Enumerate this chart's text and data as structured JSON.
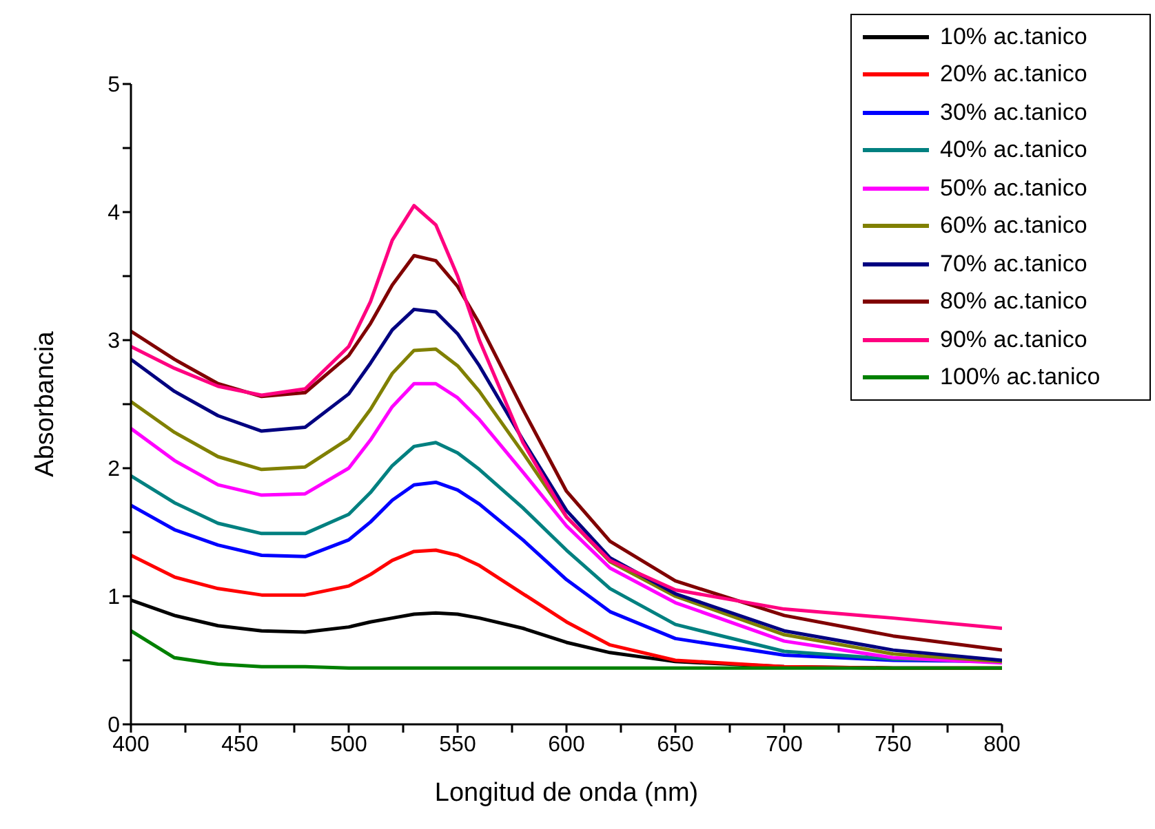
{
  "chart_data": {
    "type": "line",
    "xlabel": "Longitud de onda (nm)",
    "ylabel": "Absorbancia",
    "x": [
      400,
      420,
      440,
      460,
      480,
      500,
      510,
      520,
      530,
      540,
      550,
      560,
      580,
      600,
      620,
      650,
      700,
      750,
      800
    ],
    "xlim": [
      400,
      800
    ],
    "ylim": [
      0,
      5
    ],
    "xticks": [
      400,
      {
        "value": 425,
        "label": null
      },
      450,
      {
        "value": 475,
        "label": null
      },
      500,
      {
        "value": 525,
        "label": null
      },
      550,
      {
        "value": 575,
        "label": null
      },
      600,
      {
        "value": 625,
        "label": null
      },
      650,
      {
        "value": 675,
        "label": null
      },
      700,
      {
        "value": 725,
        "label": null
      },
      750,
      {
        "value": 775,
        "label": null
      },
      800
    ],
    "yticks": [
      0,
      {
        "value": 0.5,
        "label": null
      },
      1,
      {
        "value": 1.5,
        "label": null
      },
      2,
      {
        "value": 2.5,
        "label": null
      },
      3,
      {
        "value": 3.5,
        "label": null
      },
      4,
      {
        "value": 4.5,
        "label": null
      },
      5
    ],
    "legend": "top right",
    "series": [
      {
        "name": "10% ac.tanico",
        "color": "#000000",
        "values": [
          0.97,
          0.85,
          0.77,
          0.73,
          0.72,
          0.76,
          0.8,
          0.83,
          0.86,
          0.87,
          0.86,
          0.83,
          0.75,
          0.64,
          0.56,
          0.49,
          0.45,
          0.44,
          0.44
        ]
      },
      {
        "name": "20% ac.tanico",
        "color": "#ff0000",
        "values": [
          1.32,
          1.15,
          1.06,
          1.01,
          1.01,
          1.08,
          1.17,
          1.28,
          1.35,
          1.36,
          1.32,
          1.24,
          1.02,
          0.8,
          0.62,
          0.5,
          0.45,
          0.44,
          0.44
        ]
      },
      {
        "name": "30% ac.tanico",
        "color": "#0000ff",
        "values": [
          1.71,
          1.52,
          1.4,
          1.32,
          1.31,
          1.44,
          1.58,
          1.75,
          1.87,
          1.89,
          1.83,
          1.72,
          1.44,
          1.13,
          0.88,
          0.67,
          0.54,
          0.5,
          0.49
        ]
      },
      {
        "name": "40% ac.tanico",
        "color": "#008080",
        "values": [
          1.94,
          1.73,
          1.57,
          1.49,
          1.49,
          1.64,
          1.81,
          2.02,
          2.17,
          2.2,
          2.12,
          1.99,
          1.69,
          1.36,
          1.06,
          0.78,
          0.57,
          0.51,
          0.49
        ]
      },
      {
        "name": "50% ac.tanico",
        "color": "#ff00ff",
        "values": [
          2.31,
          2.06,
          1.87,
          1.79,
          1.8,
          2.0,
          2.22,
          2.48,
          2.66,
          2.66,
          2.55,
          2.38,
          1.97,
          1.55,
          1.22,
          0.95,
          0.65,
          0.52,
          0.48
        ]
      },
      {
        "name": "60% ac.tanico",
        "color": "#808000",
        "values": [
          2.52,
          2.28,
          2.09,
          1.99,
          2.01,
          2.23,
          2.46,
          2.74,
          2.92,
          2.93,
          2.8,
          2.6,
          2.12,
          1.62,
          1.27,
          1.0,
          0.7,
          0.55,
          0.49
        ]
      },
      {
        "name": "70% ac.tanico",
        "color": "#000080",
        "values": [
          2.85,
          2.6,
          2.41,
          2.29,
          2.32,
          2.58,
          2.82,
          3.08,
          3.24,
          3.22,
          3.05,
          2.8,
          2.22,
          1.67,
          1.3,
          1.02,
          0.73,
          0.58,
          0.5
        ]
      },
      {
        "name": "80% ac.tanico",
        "color": "#800000",
        "values": [
          3.07,
          2.85,
          2.66,
          2.56,
          2.59,
          2.88,
          3.13,
          3.43,
          3.66,
          3.62,
          3.42,
          3.13,
          2.46,
          1.82,
          1.43,
          1.12,
          0.85,
          0.69,
          0.58
        ]
      },
      {
        "name": "90% ac.tanico",
        "color": "#ff0080",
        "values": [
          2.95,
          2.78,
          2.64,
          2.57,
          2.62,
          2.95,
          3.3,
          3.78,
          4.05,
          3.9,
          3.5,
          3.0,
          2.2,
          1.62,
          1.28,
          1.05,
          0.9,
          0.83,
          0.75
        ]
      },
      {
        "name": "100% ac.tanico",
        "color": "#008000",
        "values": [
          0.73,
          0.52,
          0.47,
          0.45,
          0.45,
          0.44,
          0.44,
          0.44,
          0.44,
          0.44,
          0.44,
          0.44,
          0.44,
          0.44,
          0.44,
          0.44,
          0.44,
          0.44,
          0.44
        ]
      }
    ]
  }
}
